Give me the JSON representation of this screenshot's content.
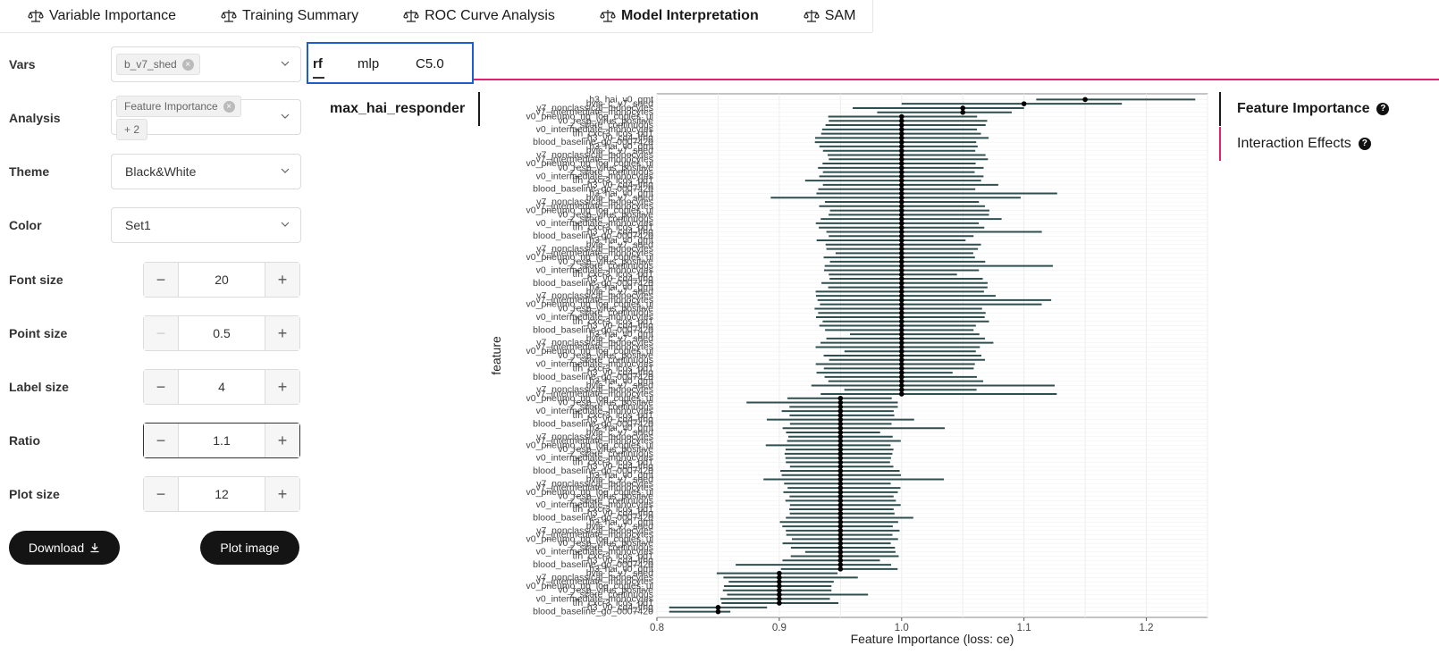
{
  "nav": {
    "tabs": [
      {
        "label": "Variable Importance"
      },
      {
        "label": "Training Summary"
      },
      {
        "label": "ROC Curve Analysis"
      },
      {
        "label": "Model Interpretation"
      },
      {
        "label": "SAM"
      }
    ],
    "active": "Model Interpretation"
  },
  "sidebar": {
    "vars": {
      "label": "Vars",
      "chip": "b_v7_shed"
    },
    "analysis": {
      "label": "Analysis",
      "chip": "Feature Importance",
      "more": "+ 2"
    },
    "theme": {
      "label": "Theme",
      "value": "Black&White"
    },
    "color": {
      "label": "Color",
      "value": "Set1"
    },
    "font_size": {
      "label": "Font size",
      "value": "20"
    },
    "point_size": {
      "label": "Point size",
      "value": "0.5"
    },
    "label_size": {
      "label": "Label size",
      "value": "4"
    },
    "ratio": {
      "label": "Ratio",
      "value": "1.1"
    },
    "plot_size": {
      "label": "Plot size",
      "value": "12"
    },
    "download_label": "Download",
    "plot_image_label": "Plot image"
  },
  "model_tabs": {
    "tabs": [
      {
        "label": "rf"
      },
      {
        "label": "mlp"
      },
      {
        "label": "C5.0"
      }
    ],
    "active": "rf"
  },
  "response_tab": "max_hai_responder",
  "right_tabs": {
    "feature_importance": "Feature Importance",
    "interaction_effects": "Interaction Effects"
  },
  "colors": {
    "accent_pink": "#e0226e",
    "tab_focus_blue": "#1f5bd1",
    "bar_color": "#2f4f4f"
  },
  "chart_data": {
    "type": "scatter",
    "xlabel": "Feature Importance (loss: ce)",
    "ylabel": "feature",
    "xlim": [
      0.8,
      1.25
    ],
    "x_ticks": [
      "0.8",
      "0.9",
      "1.0",
      "1.1",
      "1.2"
    ],
    "grid": true,
    "readable_labels": [
      "h3_hai_v0_gmt",
      "bvic_c_v7_shed",
      "v7_nonclassical_monocytes",
      "v7_intermediate_monocytes",
      "v0_pneumo_ng_log_copies_ul",
      "v0_resp_virus_positive",
      "z_score_continuous",
      "v0_intermediate_monocytes",
      "tfh_cxcr3_icos_pd1",
      "h3_v0_cd4_ifng",
      "blood_baseline_go_0007420"
    ],
    "groups": [
      {
        "value": 1.15,
        "count": 1,
        "ci": [
          [
            1.11,
            1.24
          ]
        ]
      },
      {
        "value": 1.1,
        "count": 1,
        "ci": [
          [
            1.0,
            1.18
          ]
        ]
      },
      {
        "value": 1.05,
        "count": 2,
        "ci": [
          [
            0.96,
            1.1
          ],
          [
            0.98,
            1.09
          ]
        ]
      },
      {
        "value": 1.0,
        "count": 66,
        "ci_low": 0.87,
        "ci_high": 1.13
      },
      {
        "value": 0.95,
        "count": 41,
        "ci_low": 0.86,
        "ci_high": 1.04
      },
      {
        "value": 0.9,
        "count": 8,
        "ci_low": 0.81,
        "ci_high": 0.99
      },
      {
        "value": 0.85,
        "count": 2,
        "ci": [
          [
            0.81,
            0.89
          ],
          [
            0.81,
            0.86
          ]
        ]
      }
    ]
  }
}
